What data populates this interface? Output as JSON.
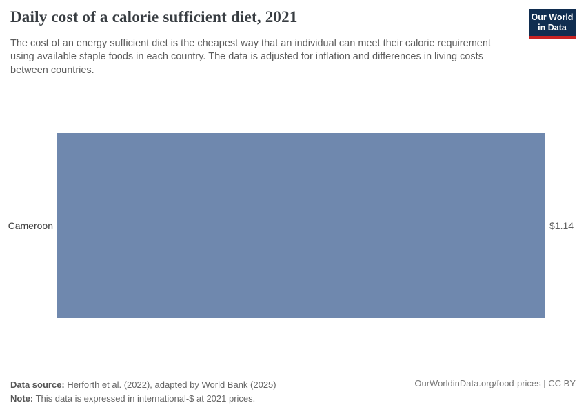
{
  "header": {
    "title": "Daily cost of a calorie sufficient diet, 2021",
    "subtitle": "The cost of an energy sufficient diet is the cheapest way that an individual can meet their calorie requirement using available staple foods in each country. The data is adjusted for inflation and differences in living costs between countries.",
    "logo": {
      "line1": "Our World",
      "line2": "in Data",
      "bg_color": "#102d50",
      "accent_color": "#c82323"
    }
  },
  "chart_data": {
    "type": "bar",
    "orientation": "horizontal",
    "title": "Daily cost of a calorie sufficient diet, 2021",
    "categories": [
      "Cameroon"
    ],
    "values": [
      1.14
    ],
    "value_labels": [
      "$1.14"
    ],
    "unit": "international-$",
    "xlabel": "",
    "ylabel": "",
    "xlim": [
      0,
      1.14
    ],
    "grid": false,
    "legend": "none",
    "bar_color": "#6f88ae",
    "axis_line_color": "#d0d0d0"
  },
  "footer": {
    "data_source_label": "Data source:",
    "data_source_text": " Herforth et al. (2022), adapted by World Bank (2025)",
    "note_label": "Note:",
    "note_text": " This data is expressed in international-$ at 2021 prices.",
    "attribution": "OurWorldinData.org/food-prices | CC BY"
  }
}
